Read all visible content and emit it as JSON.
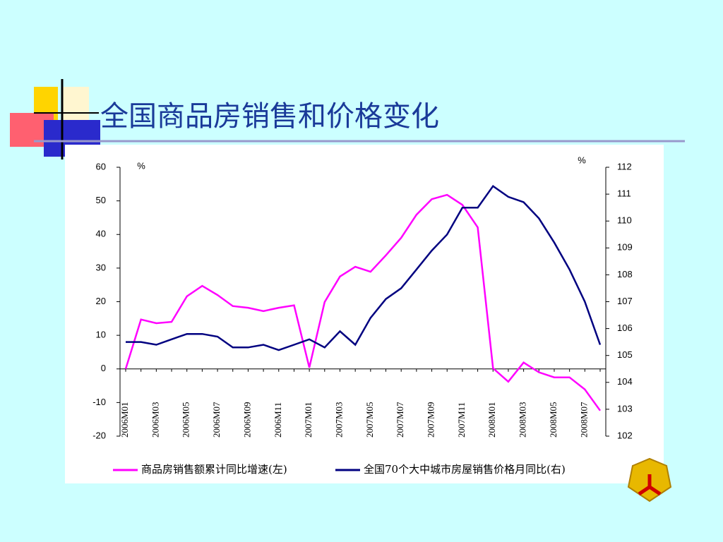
{
  "chart_data": {
    "type": "line",
    "title": "全国商品房销售和价格变化",
    "y_label": "%",
    "y2_label": "%",
    "categories": [
      "2006M01",
      null,
      "2006M03",
      null,
      "2006M05",
      null,
      "2006M07",
      null,
      "2006M09",
      null,
      "2006M11",
      null,
      "2007M01",
      null,
      "2007M03",
      null,
      "2007M05",
      null,
      "2007M07",
      null,
      "2007M09",
      null,
      "2007M11",
      null,
      "2008M01",
      null,
      "2008M03",
      null,
      "2008M05",
      null,
      "2008M07",
      null
    ],
    "series": [
      {
        "name": "商品房销售额累计同比增速(左)",
        "color": "#ff00ff",
        "values": [
          0,
          14.7,
          13.6,
          14,
          21.6,
          24.7,
          22,
          18.7,
          18.2,
          17.2,
          18.2,
          18.9,
          0.4,
          19.9,
          27.5,
          30.4,
          28.9,
          33.8,
          39,
          45.9,
          50.5,
          51.8,
          48.8,
          42.1,
          0.2,
          -3.8,
          1.9,
          -1,
          -2.5,
          -2.5,
          -6.1,
          -12.4
        ]
      },
      {
        "name": "全国70个大中城市房屋销售价格月同比(右)",
        "color": "#000080",
        "axis": "y2",
        "values": [
          105.5,
          105.5,
          105.4,
          105.6,
          105.8,
          105.8,
          105.7,
          105.3,
          105.3,
          105.4,
          105.2,
          105.4,
          105.6,
          105.3,
          105.9,
          105.4,
          106.4,
          107.1,
          107.5,
          108.2,
          108.9,
          109.5,
          110.5,
          110.5,
          111.3,
          110.9,
          110.7,
          110.1,
          109.2,
          108.2,
          107,
          105.4
        ]
      }
    ],
    "ylim": [
      -20,
      60
    ],
    "yticks": [
      -20,
      -10,
      0,
      10,
      20,
      30,
      40,
      50,
      60
    ],
    "y2lim": [
      102,
      112
    ],
    "y2ticks": [
      102,
      103,
      104,
      105,
      106,
      107,
      108,
      109,
      110,
      111,
      112
    ]
  }
}
